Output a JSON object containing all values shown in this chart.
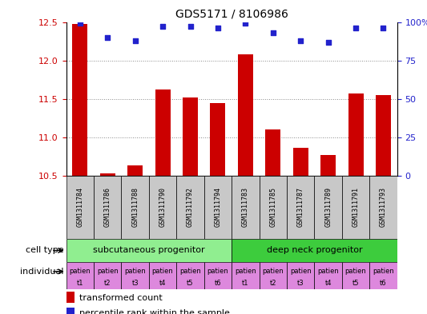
{
  "title": "GDS5171 / 8106986",
  "samples": [
    "GSM1311784",
    "GSM1311786",
    "GSM1311788",
    "GSM1311790",
    "GSM1311792",
    "GSM1311794",
    "GSM1311783",
    "GSM1311785",
    "GSM1311787",
    "GSM1311789",
    "GSM1311791",
    "GSM1311793"
  ],
  "bar_values": [
    12.47,
    10.53,
    10.64,
    11.62,
    11.52,
    11.45,
    12.08,
    11.1,
    10.86,
    10.77,
    11.57,
    11.55
  ],
  "dot_values": [
    99,
    90,
    88,
    97,
    97,
    96,
    99,
    93,
    88,
    87,
    96,
    96
  ],
  "ylim_left": [
    10.5,
    12.5
  ],
  "ylim_right": [
    0,
    100
  ],
  "yticks_left": [
    10.5,
    11.0,
    11.5,
    12.0,
    12.5
  ],
  "yticks_right": [
    0,
    25,
    50,
    75,
    100
  ],
  "bar_color": "#cc0000",
  "dot_color": "#2222cc",
  "bar_width": 0.55,
  "cell_types": [
    "subcutaneous progenitor",
    "deep neck progenitor"
  ],
  "cell_type_colors": [
    "#90ee90",
    "#3dcc3d"
  ],
  "individual_bg_color": "#dd88dd",
  "legend_bar_label": "transformed count",
  "legend_dot_label": "percentile rank within the sample",
  "grid_color": "#888888",
  "axis_color_left": "#cc0000",
  "axis_color_right": "#2222cc",
  "tick_fontsize": 8,
  "sample_label_fontsize": 6,
  "cell_type_fontsize": 8,
  "individual_fontsize": 6,
  "legend_fontsize": 8,
  "title_fontsize": 10,
  "sample_gray": "#c8c8c8"
}
